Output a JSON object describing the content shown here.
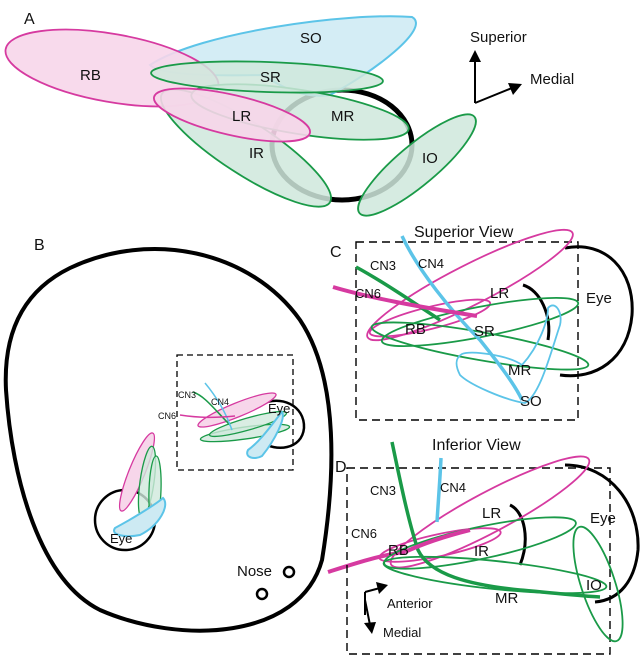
{
  "panels": {
    "a": "A",
    "b": "B",
    "c": "C",
    "d": "D"
  },
  "orientation": {
    "superior": "Superior",
    "medial": "Medial"
  },
  "panel_a": {
    "rb": "RB",
    "so": "SO",
    "sr": "SR",
    "lr": "LR",
    "mr": "MR",
    "ir": "IR",
    "io": "IO"
  },
  "panel_b": {
    "cn3": "CN3",
    "cn4": "CN4",
    "cn6": "CN6",
    "eye_small": "Eye",
    "eye_head": "Eye",
    "nose": "Nose"
  },
  "panel_c": {
    "title": "Superior View",
    "cn3": "CN3",
    "cn4": "CN4",
    "cn6": "CN6",
    "lr": "LR",
    "rb": "RB",
    "sr": "SR",
    "mr": "MR",
    "so": "SO",
    "eye": "Eye"
  },
  "panel_d": {
    "title": "Inferior View",
    "cn3": "CN3",
    "cn4": "CN4",
    "cn6": "CN6",
    "lr": "LR",
    "rb": "RB",
    "ir": "IR",
    "mr": "MR",
    "io": "IO",
    "eye": "Eye",
    "anterior": "Anterior",
    "medial": "Medial"
  },
  "colors": {
    "pink": "#d63aa0",
    "pink_fill": "#f7d6ea",
    "green": "#1a9a48",
    "green_fill": "#cfe8dc",
    "blue": "#5cc4e8",
    "blue_fill": "#cdeaf3",
    "black": "#000000"
  }
}
